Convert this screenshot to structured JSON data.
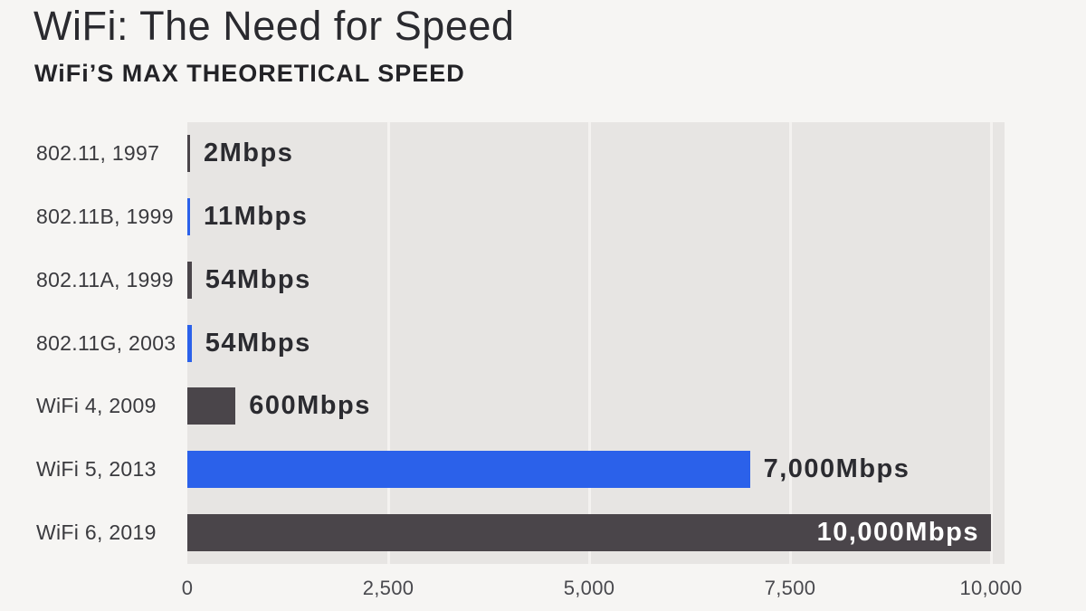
{
  "page": {
    "title": "WiFi: The Need for Speed",
    "subtitle": "WiFi’S MAX THEORETICAL SPEED"
  },
  "colors": {
    "page_background": "#f6f5f3",
    "plot_background": "#e7e5e3",
    "bar_dark": "#4a454a",
    "bar_blue": "#2b61ea",
    "value_label_dark": "#2b2b30",
    "value_label_inside": "#ffffff",
    "gridline": "#f4f2f0"
  },
  "chart_data": {
    "type": "bar",
    "orientation": "horizontal",
    "title": "WiFi: The Need for Speed",
    "subtitle": "WiFi’S MAX THEORETICAL SPEED",
    "categories": [
      "802.11, 1997",
      "802.11B, 1999",
      "802.11A, 1999",
      "802.11G, 2003",
      "WiFi 4, 2009",
      "WiFi 5, 2013",
      "WiFi 6, 2019"
    ],
    "values": [
      2,
      11,
      54,
      54,
      600,
      7000,
      10000
    ],
    "value_labels": [
      "2Mbps",
      "11Mbps",
      "54Mbps",
      "54Mbps",
      "600Mbps",
      "7,000Mbps",
      "10,000Mbps"
    ],
    "bar_colors": [
      "dark",
      "blue",
      "dark",
      "blue",
      "dark",
      "blue",
      "dark"
    ],
    "value_label_inside": [
      false,
      false,
      false,
      false,
      false,
      false,
      true
    ],
    "unit": "Mbps",
    "x_axis": {
      "min": 0,
      "max": 10000,
      "tick_values": [
        0,
        2500,
        5000,
        7500,
        10000
      ],
      "ticks": [
        "0",
        "2,500",
        "5,000",
        "7,500",
        "10,000"
      ]
    },
    "xlabel": "",
    "ylabel": "",
    "grid": true,
    "legend": false
  }
}
